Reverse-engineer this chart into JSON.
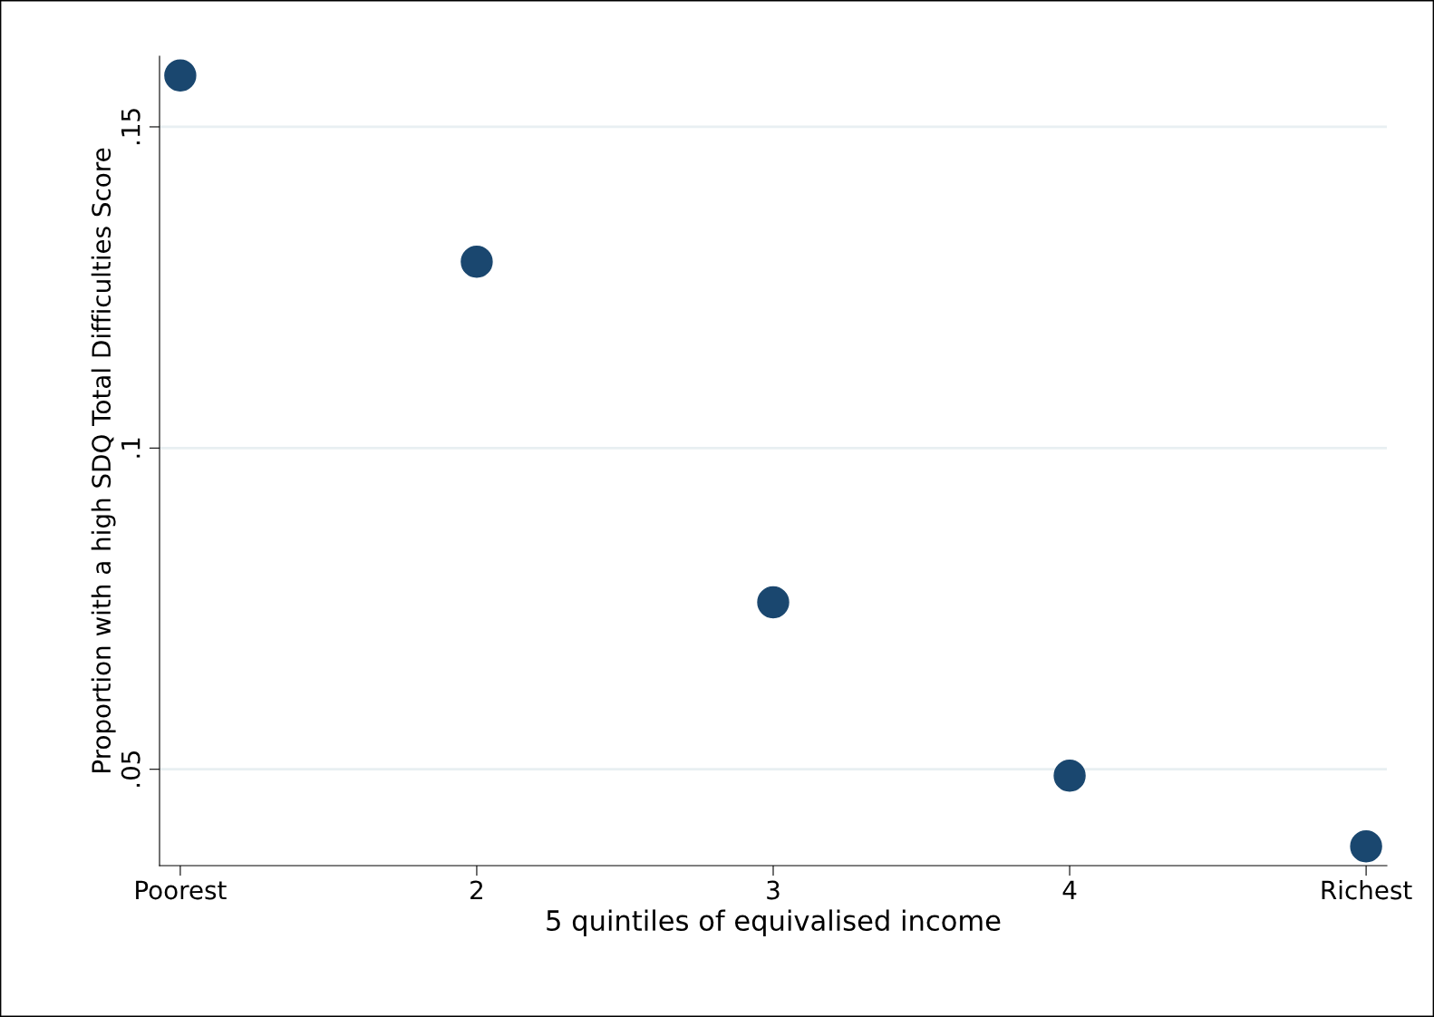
{
  "chart_data": {
    "type": "scatter",
    "xlabel": "5 quintiles of equivalised income",
    "ylabel": "Proportion with a high SDQ Total Difficulties Score",
    "categories": [
      "Poorest",
      "2",
      "3",
      "4",
      "Richest"
    ],
    "series": [
      {
        "color": "#1a476f",
        "values": [
          0.158,
          0.129,
          0.076,
          0.049,
          0.038
        ]
      }
    ],
    "ylim": [
      0.035,
      0.161
    ],
    "yticks": [
      {
        "value": 0.05,
        "label": ".05"
      },
      {
        "value": 0.1,
        "label": ".1"
      },
      {
        "value": 0.15,
        "label": ".15"
      }
    ],
    "grid": "y",
    "marker": "circle",
    "legend": false
  }
}
